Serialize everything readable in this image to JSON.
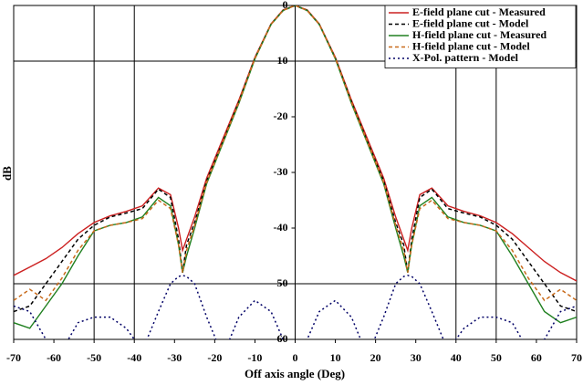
{
  "chart_data": {
    "type": "line",
    "xlabel": "Off axis angle (Deg)",
    "ylabel": "dB",
    "x": [
      -70,
      -66,
      -62,
      -58,
      -54,
      -50,
      -46,
      -42,
      -38,
      -34,
      -31,
      -29,
      -28,
      -27,
      -25,
      -22,
      -18,
      -14,
      -10,
      -6,
      -3,
      0,
      3,
      6,
      10,
      14,
      18,
      22,
      25,
      27,
      28,
      29,
      31,
      34,
      38,
      42,
      46,
      50,
      54,
      58,
      62,
      66,
      70
    ],
    "xlim": [
      -70,
      70
    ],
    "xticks": [
      -70,
      -60,
      -50,
      -40,
      -30,
      -20,
      -10,
      0,
      10,
      20,
      30,
      40,
      50,
      60,
      70
    ],
    "ylim": [
      -60,
      0
    ],
    "yticks": [
      0,
      -10,
      -20,
      -30,
      -40,
      -50,
      -60
    ],
    "xgrid": [
      -50,
      -40,
      40,
      50
    ],
    "ygrid": [
      -10,
      -50
    ],
    "legend": "top-right",
    "series": [
      {
        "name": "E-field plane cut - Measured",
        "color": "#cc2020",
        "style": "solid",
        "values": [
          -48.5,
          -47,
          -45.5,
          -43.5,
          -41,
          -39,
          -37.8,
          -37,
          -36,
          -32.8,
          -34,
          -40,
          -44,
          -42,
          -38,
          -31,
          -24,
          -17,
          -9.3,
          -3.3,
          -0.8,
          0,
          -0.8,
          -3.3,
          -9.3,
          -17,
          -24,
          -31,
          -38,
          -42,
          -44,
          -40,
          -34,
          -32.8,
          -36,
          -37,
          -37.8,
          -39,
          -41,
          -43.5,
          -46,
          -48,
          -49.5
        ]
      },
      {
        "name": "E-field plane cut - Model",
        "color": "#000000",
        "style": "dashed",
        "values": [
          -55,
          -54,
          -50,
          -46,
          -42,
          -39.5,
          -38,
          -37.3,
          -36.5,
          -33,
          -34.5,
          -42,
          -48,
          -43,
          -39,
          -31.5,
          -24.5,
          -17.3,
          -9.5,
          -3.4,
          -0.9,
          0,
          -0.9,
          -3.4,
          -9.5,
          -17.3,
          -24.5,
          -31.5,
          -39,
          -43,
          -48,
          -42,
          -34.5,
          -33,
          -36.5,
          -37.3,
          -38,
          -39.5,
          -42,
          -46,
          -50,
          -54,
          -55
        ]
      },
      {
        "name": "H-field plane cut - Measured",
        "color": "#208020",
        "style": "solid",
        "values": [
          -57,
          -58,
          -54,
          -50,
          -45,
          -40.5,
          -39.5,
          -39,
          -38,
          -34.5,
          -36,
          -43,
          -48,
          -45,
          -40,
          -32,
          -24.8,
          -17.6,
          -9.6,
          -3.4,
          -0.9,
          0,
          -0.9,
          -3.4,
          -9.6,
          -17.6,
          -24.8,
          -32,
          -40,
          -45,
          -48,
          -43,
          -36,
          -34.5,
          -38,
          -39,
          -39.5,
          -40.5,
          -45,
          -50,
          -55,
          -57,
          -56
        ]
      },
      {
        "name": "H-field plane cut - Model",
        "color": "#c86a1a",
        "style": "dashed",
        "values": [
          -53,
          -51,
          -53,
          -49,
          -44,
          -40.5,
          -39.5,
          -39,
          -38.3,
          -35,
          -36.5,
          -43,
          -48,
          -44,
          -39.5,
          -31.8,
          -24.6,
          -17.4,
          -9.5,
          -3.4,
          -0.9,
          0,
          -0.9,
          -3.4,
          -9.5,
          -17.4,
          -24.6,
          -31.8,
          -39.5,
          -44,
          -48,
          -43,
          -36.5,
          -35,
          -38.3,
          -39,
          -39.5,
          -40.5,
          -44,
          -49,
          -53,
          -51,
          -53
        ]
      },
      {
        "name": "X-Pol. pattern - Model",
        "color": "#000066",
        "style": "dotted",
        "values": [
          -54,
          -55,
          -60,
          -62,
          -57,
          -56,
          -56,
          -58,
          -62,
          -55,
          -50,
          -48.7,
          -48.5,
          -48.7,
          -50,
          -56,
          -63,
          -56,
          -53,
          -55,
          -60,
          -64,
          -60,
          -55,
          -53,
          -56,
          -63,
          -56,
          -50,
          -48.7,
          -48.5,
          -48.7,
          -50,
          -55,
          -62,
          -58,
          -56,
          -56,
          -57,
          -62,
          -60,
          -55,
          -54
        ]
      }
    ]
  }
}
